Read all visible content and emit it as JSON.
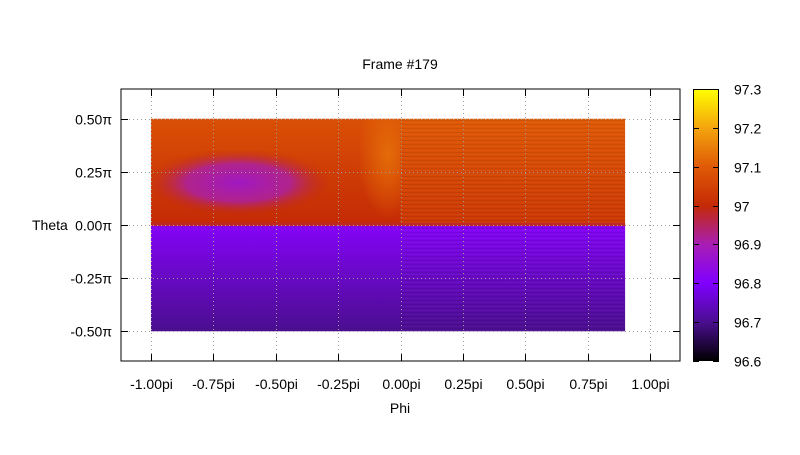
{
  "chart_data": {
    "type": "heatmap",
    "title": "Frame #179",
    "xlabel": "Phi",
    "ylabel": "Theta",
    "xlim": [
      -1.12,
      1.12
    ],
    "ylim": [
      -0.64,
      0.64
    ],
    "x_ticks": [
      {
        "value": -1.0,
        "label": "-1.00pi"
      },
      {
        "value": -0.75,
        "label": "-0.75pi"
      },
      {
        "value": -0.5,
        "label": "-0.50pi"
      },
      {
        "value": -0.25,
        "label": "-0.25pi"
      },
      {
        "value": 0.0,
        "label": "0.00pi"
      },
      {
        "value": 0.25,
        "label": "0.25pi"
      },
      {
        "value": 0.5,
        "label": "0.50pi"
      },
      {
        "value": 0.75,
        "label": "0.75pi"
      },
      {
        "value": 1.0,
        "label": "1.00pi"
      }
    ],
    "y_ticks": [
      {
        "value": 0.5,
        "label": "0.50π"
      },
      {
        "value": 0.25,
        "label": "0.25π"
      },
      {
        "value": 0.0,
        "label": "0.00π"
      },
      {
        "value": -0.25,
        "label": "-0.25π"
      },
      {
        "value": -0.5,
        "label": "-0.50π"
      }
    ],
    "data_extent": {
      "phi": [
        -1.0,
        0.9
      ],
      "theta": [
        -0.5,
        0.5
      ]
    },
    "colorbar": {
      "range": [
        96.6,
        97.3
      ],
      "ticks": [
        {
          "value": 97.3,
          "label": "97.3"
        },
        {
          "value": 97.2,
          "label": "97.2"
        },
        {
          "value": 97.1,
          "label": "97.1"
        },
        {
          "value": 97.0,
          "label": "97"
        },
        {
          "value": 96.9,
          "label": "96.9"
        },
        {
          "value": 96.8,
          "label": "96.8"
        },
        {
          "value": 96.7,
          "label": "96.7"
        },
        {
          "value": 96.6,
          "label": "96.6"
        }
      ]
    },
    "palette_stops": [
      {
        "value": 96.6,
        "color": "#000000"
      },
      {
        "value": 96.7,
        "color": "#4a0e8f"
      },
      {
        "value": 96.8,
        "color": "#8000ff"
      },
      {
        "value": 96.9,
        "color": "#a81eb4"
      },
      {
        "value": 97.0,
        "color": "#c42a05"
      },
      {
        "value": 97.1,
        "color": "#e05a06"
      },
      {
        "value": 97.2,
        "color": "#f4a40e"
      },
      {
        "value": 97.3,
        "color": "#ffff00"
      }
    ],
    "regions": [
      {
        "name": "upper-left",
        "phi": [
          -1.0,
          0.0
        ],
        "theta": [
          0.0,
          0.5
        ],
        "top_value": 97.08,
        "bottom_value": 97.0,
        "stripes": false
      },
      {
        "name": "upper-left-blob",
        "center": [
          -0.65,
          0.2
        ],
        "radius": [
          0.38,
          0.16
        ],
        "value": 96.88
      },
      {
        "name": "upper-left-bright",
        "center": [
          -0.05,
          0.33
        ],
        "radius": [
          0.12,
          0.3
        ],
        "value": 97.13
      },
      {
        "name": "upper-right",
        "phi": [
          0.0,
          0.9
        ],
        "theta": [
          0.0,
          0.5
        ],
        "top_value": 97.1,
        "bottom_value": 97.03,
        "stripes": true
      },
      {
        "name": "equator-band",
        "theta": [
          -0.005,
          0.01
        ],
        "value": 96.98
      },
      {
        "name": "lower",
        "phi": [
          -1.0,
          0.9
        ],
        "theta": [
          -0.5,
          0.0
        ],
        "top_value": 96.81,
        "bottom_value": 96.7,
        "stripes": true
      }
    ],
    "grid": true,
    "legend": "colorbar-right"
  }
}
